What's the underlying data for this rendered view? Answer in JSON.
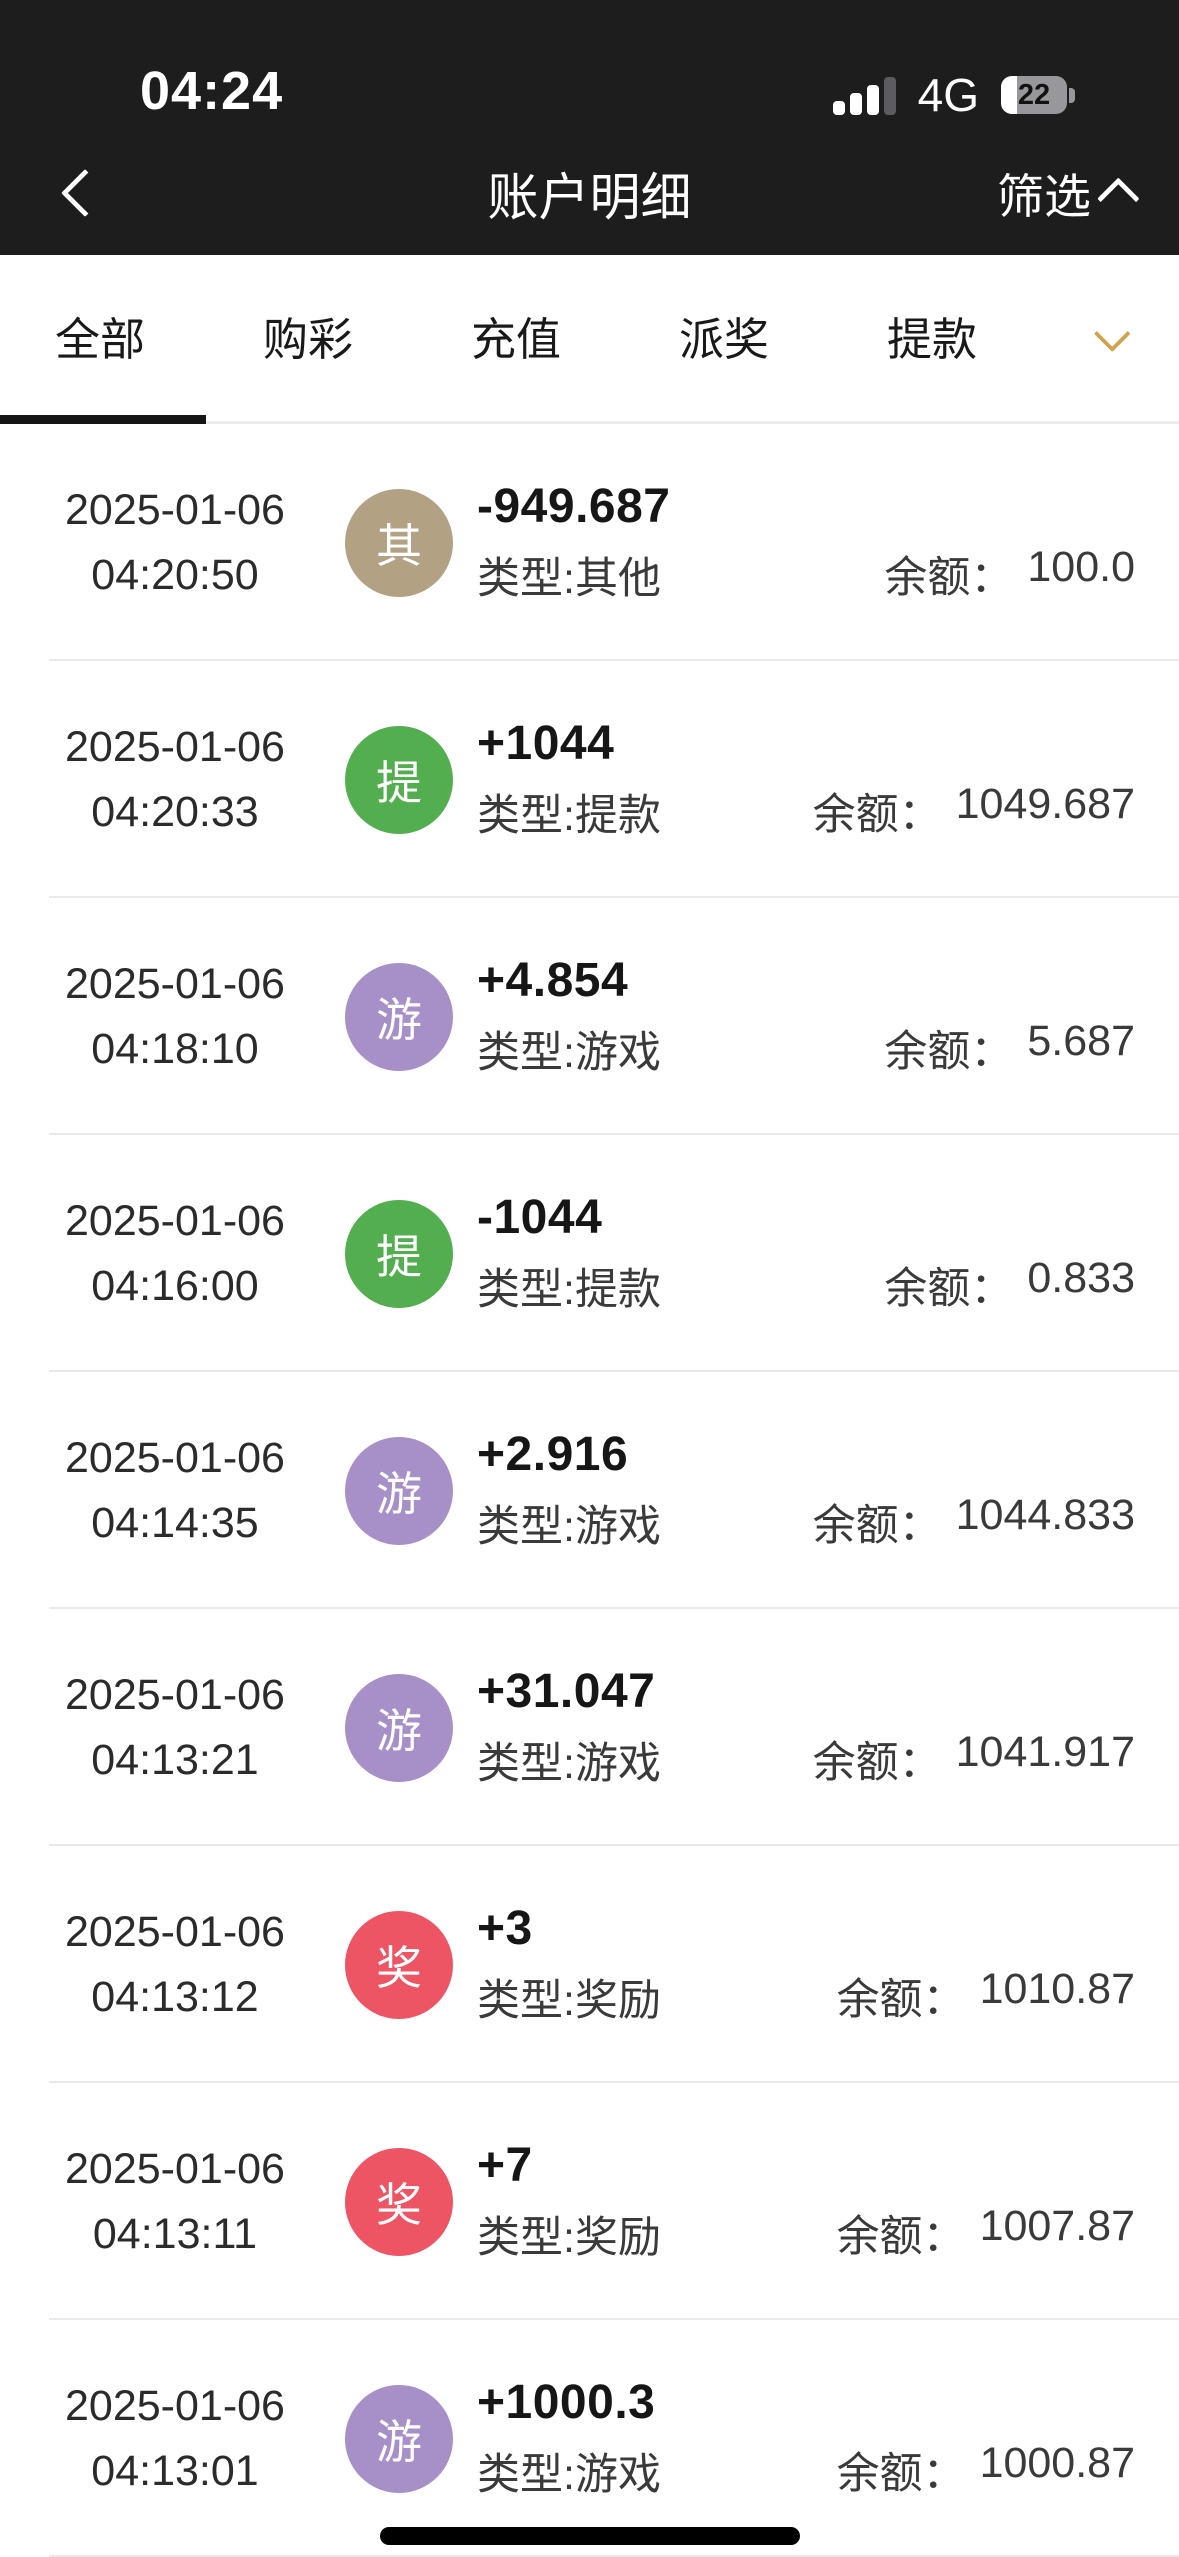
{
  "status_bar": {
    "time": "04:24",
    "network": "4G",
    "battery_percent": "22"
  },
  "nav": {
    "title": "账户明细",
    "filter_label": "筛选"
  },
  "tabs": {
    "items": [
      {
        "label": "全部",
        "active": true
      },
      {
        "label": "购彩",
        "active": false
      },
      {
        "label": "充值",
        "active": false
      },
      {
        "label": "派奖",
        "active": false
      },
      {
        "label": "提款",
        "active": false
      }
    ]
  },
  "colors": {
    "header_bg": "#1d1d1d",
    "accent_gold": "#d2a24c",
    "badge_other": "#b3a183",
    "badge_withdraw": "#52ae4e",
    "badge_game": "#a78fc8",
    "badge_reward": "#ed5565"
  },
  "list": {
    "balance_label": "余额：",
    "rows": [
      {
        "date": "2025-01-06",
        "time": "04:20:50",
        "badge": "其",
        "badge_color": "#b3a183",
        "amount": "-949.687",
        "type": "类型:其他",
        "balance": "100.0"
      },
      {
        "date": "2025-01-06",
        "time": "04:20:33",
        "badge": "提",
        "badge_color": "#52ae4e",
        "amount": "+1044",
        "type": "类型:提款",
        "balance": "1049.687"
      },
      {
        "date": "2025-01-06",
        "time": "04:18:10",
        "badge": "游",
        "badge_color": "#a78fc8",
        "amount": "+4.854",
        "type": "类型:游戏",
        "balance": "5.687"
      },
      {
        "date": "2025-01-06",
        "time": "04:16:00",
        "badge": "提",
        "badge_color": "#52ae4e",
        "amount": "-1044",
        "type": "类型:提款",
        "balance": "0.833"
      },
      {
        "date": "2025-01-06",
        "time": "04:14:35",
        "badge": "游",
        "badge_color": "#a78fc8",
        "amount": "+2.916",
        "type": "类型:游戏",
        "balance": "1044.833"
      },
      {
        "date": "2025-01-06",
        "time": "04:13:21",
        "badge": "游",
        "badge_color": "#a78fc8",
        "amount": "+31.047",
        "type": "类型:游戏",
        "balance": "1041.917"
      },
      {
        "date": "2025-01-06",
        "time": "04:13:12",
        "badge": "奖",
        "badge_color": "#ed5565",
        "amount": "+3",
        "type": "类型:奖励",
        "balance": "1010.87"
      },
      {
        "date": "2025-01-06",
        "time": "04:13:11",
        "badge": "奖",
        "badge_color": "#ed5565",
        "amount": "+7",
        "type": "类型:奖励",
        "balance": "1007.87"
      },
      {
        "date": "2025-01-06",
        "time": "04:13:01",
        "badge": "游",
        "badge_color": "#a78fc8",
        "amount": "+1000.3",
        "type": "类型:游戏",
        "balance": "1000.87"
      }
    ]
  }
}
